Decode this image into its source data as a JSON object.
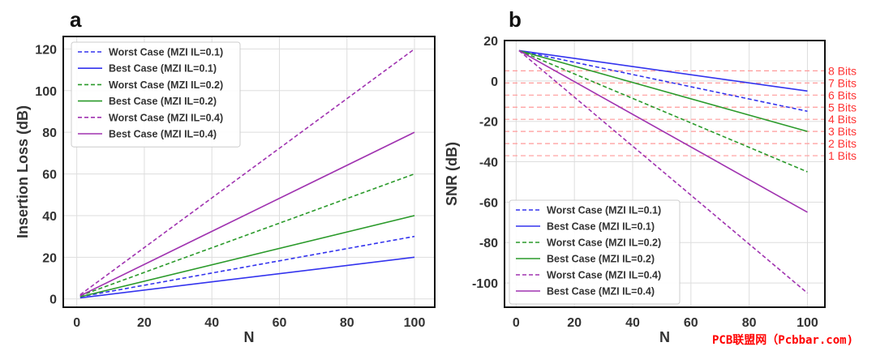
{
  "watermark": "PCB联盟网（Pcbbar.com)",
  "colors": {
    "blue": "#3333ee",
    "green": "#2a9a2a",
    "purple": "#a033b0",
    "bits": "#ff3333",
    "grid": "#dddddd"
  },
  "chart_data": [
    {
      "type": "line",
      "panel_label": "a",
      "xlabel": "N",
      "ylabel": "Insertion Loss (dB)",
      "xlim": [
        -4,
        106
      ],
      "ylim": [
        -4,
        126
      ],
      "xticks": [
        0,
        20,
        40,
        60,
        80,
        100
      ],
      "yticks": [
        0,
        20,
        40,
        60,
        80,
        100,
        120
      ],
      "grid": true,
      "legend_position": "top-left",
      "series": [
        {
          "name": "Worst Case (MZI IL=0.1)",
          "color": "blue",
          "dash": true,
          "x": [
            1,
            100
          ],
          "y": [
            1,
            30
          ]
        },
        {
          "name": "Best Case (MZI IL=0.1)",
          "color": "blue",
          "dash": false,
          "x": [
            1,
            100
          ],
          "y": [
            0.5,
            20
          ]
        },
        {
          "name": "Worst Case (MZI IL=0.2)",
          "color": "green",
          "dash": true,
          "x": [
            1,
            100
          ],
          "y": [
            1.5,
            60
          ]
        },
        {
          "name": "Best Case (MZI IL=0.2)",
          "color": "green",
          "dash": false,
          "x": [
            1,
            100
          ],
          "y": [
            1,
            40
          ]
        },
        {
          "name": "Worst Case (MZI IL=0.4)",
          "color": "purple",
          "dash": true,
          "x": [
            1,
            100
          ],
          "y": [
            2,
            120
          ]
        },
        {
          "name": "Best Case (MZI IL=0.4)",
          "color": "purple",
          "dash": false,
          "x": [
            1,
            100
          ],
          "y": [
            1.5,
            80
          ]
        }
      ]
    },
    {
      "type": "line",
      "panel_label": "b",
      "xlabel": "N",
      "ylabel": "SNR (dB)",
      "xlim": [
        -4,
        106
      ],
      "ylim": [
        -112,
        20
      ],
      "xticks": [
        0,
        20,
        40,
        60,
        80,
        100
      ],
      "yticks": [
        20,
        0,
        -20,
        -40,
        -60,
        -80,
        -100
      ],
      "grid": true,
      "legend_position": "bottom-left",
      "series": [
        {
          "name": "Worst Case (MZI IL=0.1)",
          "color": "blue",
          "dash": true,
          "x": [
            1,
            100
          ],
          "y": [
            15,
            -15
          ]
        },
        {
          "name": "Best Case (MZI IL=0.1)",
          "color": "blue",
          "dash": false,
          "x": [
            1,
            100
          ],
          "y": [
            15,
            -5
          ]
        },
        {
          "name": "Worst Case (MZI IL=0.2)",
          "color": "green",
          "dash": true,
          "x": [
            1,
            100
          ],
          "y": [
            15,
            -45
          ]
        },
        {
          "name": "Best Case (MZI IL=0.2)",
          "color": "green",
          "dash": false,
          "x": [
            1,
            100
          ],
          "y": [
            15,
            -25
          ]
        },
        {
          "name": "Worst Case (MZI IL=0.4)",
          "color": "purple",
          "dash": true,
          "x": [
            1,
            100
          ],
          "y": [
            15,
            -105
          ]
        },
        {
          "name": "Best Case (MZI IL=0.4)",
          "color": "purple",
          "dash": false,
          "x": [
            1,
            100
          ],
          "y": [
            15,
            -65
          ]
        }
      ],
      "bit_levels": [
        {
          "label": "8 Bits",
          "y": 5
        },
        {
          "label": "7 Bits",
          "y": -1
        },
        {
          "label": "6 Bits",
          "y": -7
        },
        {
          "label": "5 Bits",
          "y": -13
        },
        {
          "label": "4 Bits",
          "y": -19
        },
        {
          "label": "3 Bits",
          "y": -25
        },
        {
          "label": "2 Bits",
          "y": -31
        },
        {
          "label": "1 Bits",
          "y": -37
        }
      ]
    }
  ]
}
